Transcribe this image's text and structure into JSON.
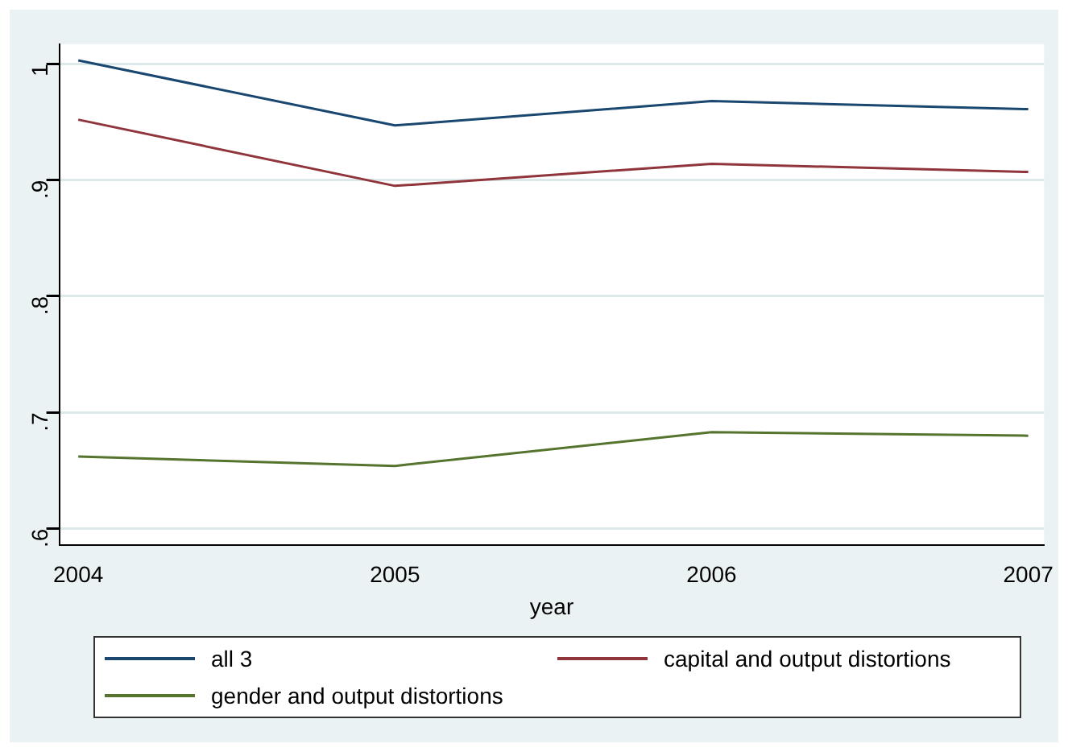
{
  "chart_data": {
    "type": "line",
    "xlabel": "year",
    "x": [
      2004,
      2005,
      2006,
      2007
    ],
    "series": [
      {
        "name": "all 3",
        "color": "#1a476f",
        "values": [
          1.003,
          0.947,
          0.968,
          0.961
        ]
      },
      {
        "name": "capital and output distortions",
        "color": "#90353b",
        "values": [
          0.952,
          0.895,
          0.914,
          0.907
        ]
      },
      {
        "name": "gender and output distortions",
        "color": "#55752f",
        "values": [
          0.662,
          0.654,
          0.683,
          0.68
        ]
      }
    ],
    "xlim": [
      2003.94,
      2007.05
    ],
    "xticks": [
      2004,
      2005,
      2006,
      2007
    ],
    "ylim": [
      0.586,
      1.017
    ],
    "yticks": [
      {
        "value": 0.6,
        "label": ".6"
      },
      {
        "value": 0.7,
        "label": ".7"
      },
      {
        "value": 0.8,
        "label": ".8"
      },
      {
        "value": 0.9,
        "label": ".9"
      },
      1
    ],
    "grid": "y",
    "legend": "bottom",
    "marker": "none",
    "line_style": "solid"
  }
}
